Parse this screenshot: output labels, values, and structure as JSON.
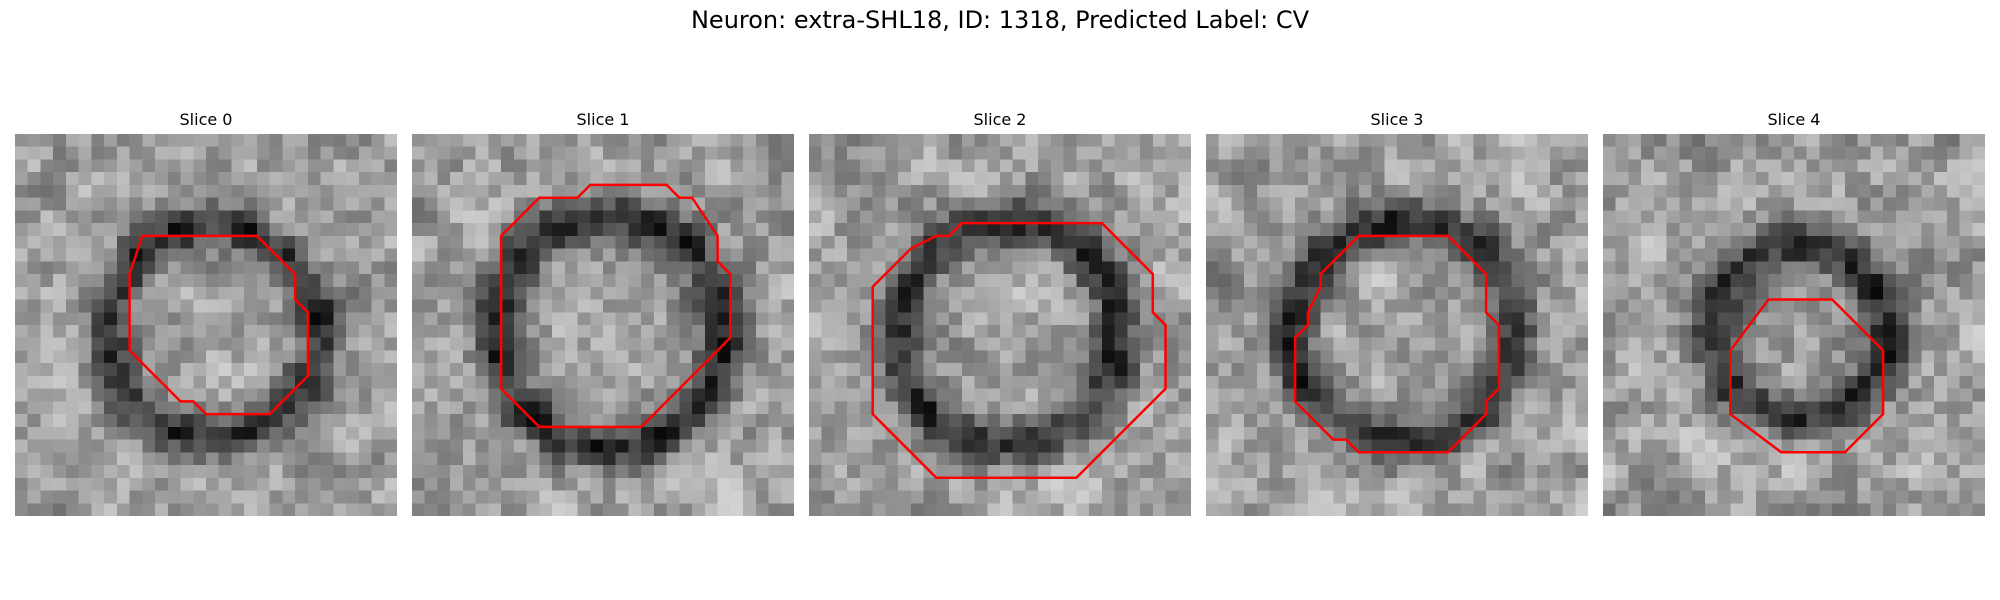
{
  "figure": {
    "title": "Neuron: extra-SHL18, ID: 1318, Predicted Label: CV"
  },
  "panels": [
    {
      "title": "Slice 0",
      "seed": 11,
      "ring": 0.55,
      "contour": [
        [
          10,
          8
        ],
        [
          19,
          8
        ],
        [
          20,
          9
        ],
        [
          22,
          11
        ],
        [
          22,
          13
        ],
        [
          23,
          14
        ],
        [
          23,
          19
        ],
        [
          21,
          21
        ],
        [
          20,
          22
        ],
        [
          15,
          22
        ],
        [
          14,
          21
        ],
        [
          13,
          21
        ],
        [
          10,
          18
        ],
        [
          9,
          17
        ],
        [
          9,
          11
        ]
      ]
    },
    {
      "title": "Slice 1",
      "seed": 23,
      "ring": 0.6,
      "contour": [
        [
          10,
          5
        ],
        [
          13,
          5
        ],
        [
          14,
          4
        ],
        [
          20,
          4
        ],
        [
          21,
          5
        ],
        [
          22,
          5
        ],
        [
          24,
          8
        ],
        [
          24,
          10
        ],
        [
          25,
          11
        ],
        [
          25,
          16
        ],
        [
          18,
          23
        ],
        [
          10,
          23
        ],
        [
          7,
          20
        ],
        [
          7,
          8
        ]
      ]
    },
    {
      "title": "Slice 2",
      "seed": 37,
      "ring": 0.58,
      "contour": [
        [
          10,
          8
        ],
        [
          11,
          8
        ],
        [
          12,
          7
        ],
        [
          23,
          7
        ],
        [
          27,
          11
        ],
        [
          27,
          14
        ],
        [
          28,
          15
        ],
        [
          28,
          20
        ],
        [
          21,
          27
        ],
        [
          10,
          27
        ],
        [
          5,
          22
        ],
        [
          5,
          12
        ],
        [
          8,
          9
        ]
      ]
    },
    {
      "title": "Slice 3",
      "seed": 51,
      "ring": 0.58,
      "contour": [
        [
          12,
          8
        ],
        [
          19,
          8
        ],
        [
          22,
          11
        ],
        [
          22,
          14
        ],
        [
          23,
          15
        ],
        [
          23,
          20
        ],
        [
          22,
          21
        ],
        [
          22,
          22
        ],
        [
          19,
          25
        ],
        [
          12,
          25
        ],
        [
          11,
          24
        ],
        [
          10,
          24
        ],
        [
          7,
          21
        ],
        [
          7,
          16
        ],
        [
          8,
          15
        ],
        [
          8,
          14
        ],
        [
          9,
          12
        ],
        [
          9,
          11
        ]
      ]
    },
    {
      "title": "Slice 4",
      "seed": 67,
      "ring": 0.45,
      "contour": [
        [
          13,
          13
        ],
        [
          18,
          13
        ],
        [
          22,
          17
        ],
        [
          22,
          22
        ],
        [
          19,
          25
        ],
        [
          14,
          25
        ],
        [
          10,
          22
        ],
        [
          10,
          17
        ]
      ]
    }
  ],
  "colors": {
    "contour": "#ff0000"
  }
}
